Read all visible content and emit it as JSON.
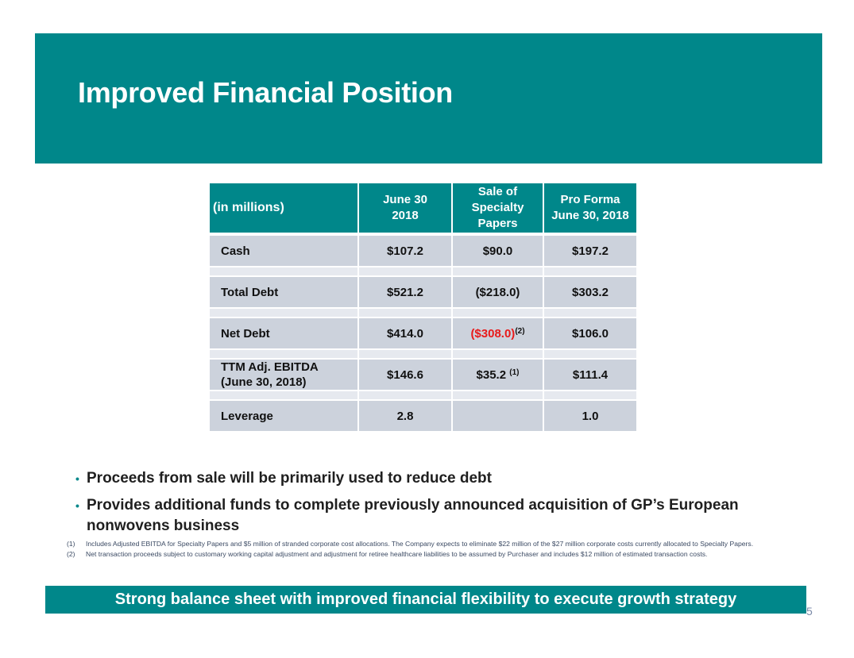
{
  "title": "Improved Financial Position",
  "table": {
    "headers": [
      "(in millions)",
      "June 30 2018",
      "Sale of Specialty Papers",
      "Pro Forma June 30, 2018"
    ],
    "rows": [
      {
        "label": "Cash",
        "june30": "$107.2",
        "sale": "$90.0",
        "sale_note": "",
        "proforma": "$197.2"
      },
      {
        "label": "Total Debt",
        "june30": "$521.2",
        "sale": "($218.0)",
        "sale_note": "",
        "proforma": "$303.2"
      },
      {
        "label": "Net Debt",
        "june30": "$414.0",
        "sale": "($308.0)",
        "sale_note": "(2)",
        "proforma": "$106.0"
      },
      {
        "label": "TTM Adj. EBITDA (June 30, 2018)",
        "june30": "$146.6",
        "sale": "$35.2",
        "sale_note": "(1)",
        "proforma": "$111.4"
      },
      {
        "label": "Leverage",
        "june30": "2.8",
        "sale": "",
        "sale_note": "",
        "proforma": "1.0"
      }
    ],
    "negative_color": "#e81a1a"
  },
  "bullets": [
    "Proceeds from sale will be primarily used to reduce debt",
    "Provides additional funds to complete previously announced acquisition of GP’s European nonwovens business"
  ],
  "footnotes": [
    {
      "num": "(1)",
      "text": "Includes Adjusted EBITDA for Specialty Papers and $5 million of stranded corporate cost allocations.  The Company expects to eliminate $22 million of the $27 million corporate costs currently allocated to Specialty Papers."
    },
    {
      "num": "(2)",
      "text": "Net transaction proceeds subject to customary working capital adjustment and adjustment for retiree healthcare liabilities to be assumed by Purchaser and includes $12 million of estimated transaction costs."
    }
  ],
  "footer_banner": "Strong balance sheet with improved financial flexibility to execute growth strategy",
  "page_number": "5",
  "colors": {
    "brand_teal": "#00878a",
    "table_cell": "#ccd2dc"
  }
}
